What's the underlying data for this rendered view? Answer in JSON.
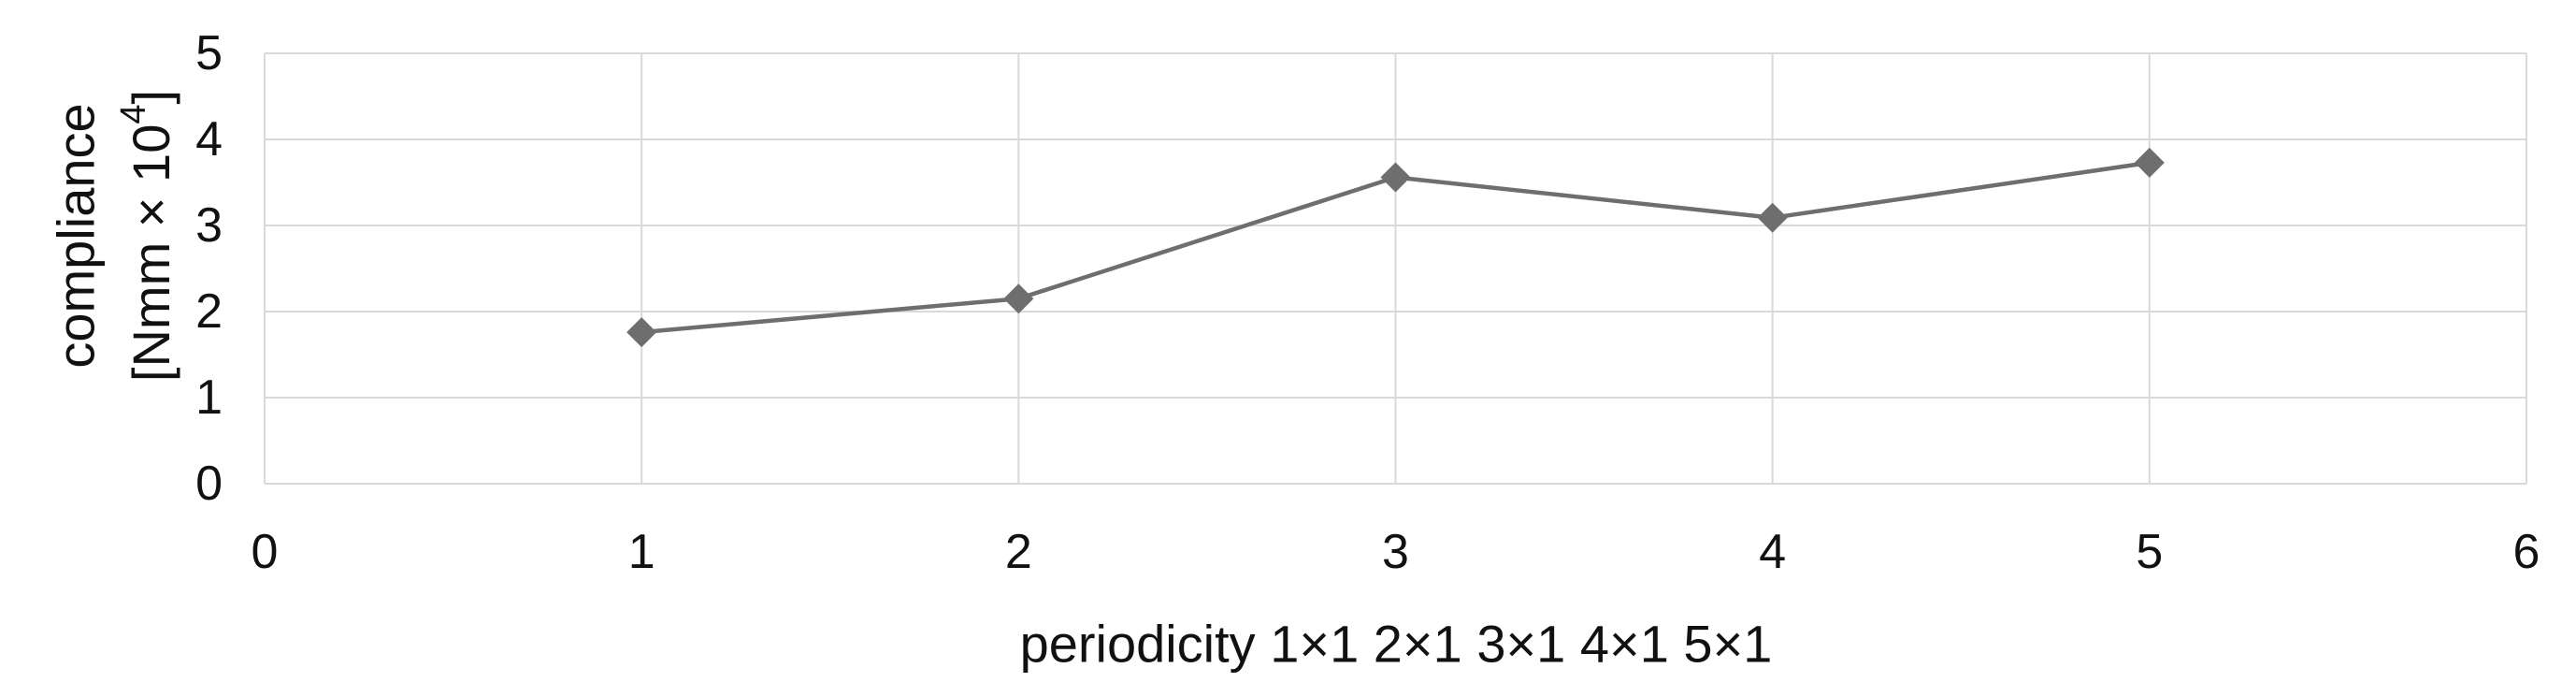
{
  "figure": {
    "background": "#ffffff"
  },
  "y_axis_title": {
    "line1": "compliance",
    "line2_pre": "[Nmm × 10",
    "line2_sup": "4",
    "line2_post": "]"
  },
  "chart_data": {
    "type": "line",
    "title": "",
    "xlabel": "periodicity 1×1 2×1 3×1 4×1 5×1",
    "ylabel": "compliance [Nmm × 10⁴]",
    "x": [
      1,
      2,
      3,
      4,
      5
    ],
    "y": [
      1.76,
      2.15,
      3.56,
      3.09,
      3.73
    ],
    "xlim": [
      0,
      6
    ],
    "ylim": [
      0,
      5
    ],
    "x_ticks": [
      0,
      1,
      2,
      3,
      4,
      5,
      6
    ],
    "y_ticks": [
      0,
      1,
      2,
      3,
      4,
      5
    ],
    "grid": true,
    "legend": false,
    "marker": "diamond",
    "line_color": "#6e6e6e",
    "marker_color": "#6e6e6e",
    "grid_color": "#d9d9d9",
    "text_color": "#111111",
    "tick_font_size": 52,
    "title_font_size": 56
  }
}
